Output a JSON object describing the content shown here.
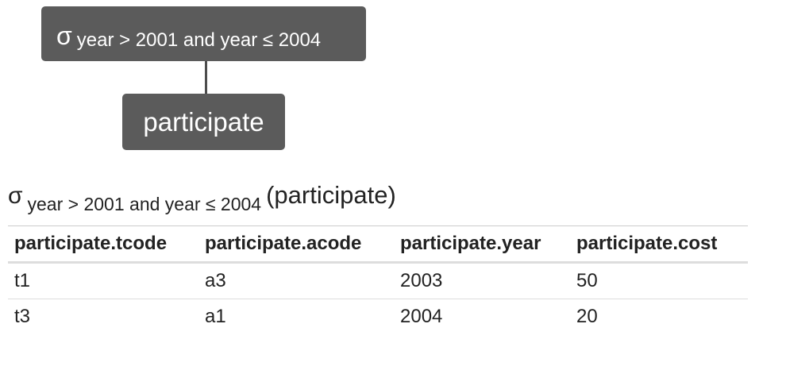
{
  "tree": {
    "select_node": {
      "operator": "σ",
      "condition": "year > 2001 and year ≤ 2004"
    },
    "relation_node": {
      "label": "participate"
    }
  },
  "expression": {
    "operator": "σ",
    "condition": "year > 2001 and year ≤ 2004",
    "argument": "(participate)"
  },
  "table": {
    "columns": [
      "participate.tcode",
      "participate.acode",
      "participate.year",
      "participate.cost"
    ],
    "rows": [
      [
        "t1",
        "a3",
        "2003",
        "50"
      ],
      [
        "t3",
        "a1",
        "2004",
        "20"
      ]
    ]
  }
}
